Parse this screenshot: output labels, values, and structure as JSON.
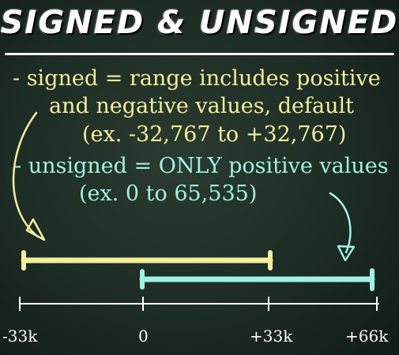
{
  "title": "SIGNED & UNSIGNED",
  "signed": {
    "line1": "- signed = range includes positive",
    "line2": "and negative values, default",
    "line3": "(ex. -32,767 to +32,767)"
  },
  "unsigned": {
    "line1": "- unsigned = ONLY positive values",
    "line2": "(ex. 0 to 65,535)"
  },
  "axis": {
    "ticks": [
      "-33k",
      "0",
      "+33k",
      "+66k"
    ]
  },
  "colors": {
    "signed": "#f3ef9b",
    "unsigned": "#9ff2e0",
    "axis": "#ffffff",
    "background": "#1d2c24"
  }
}
